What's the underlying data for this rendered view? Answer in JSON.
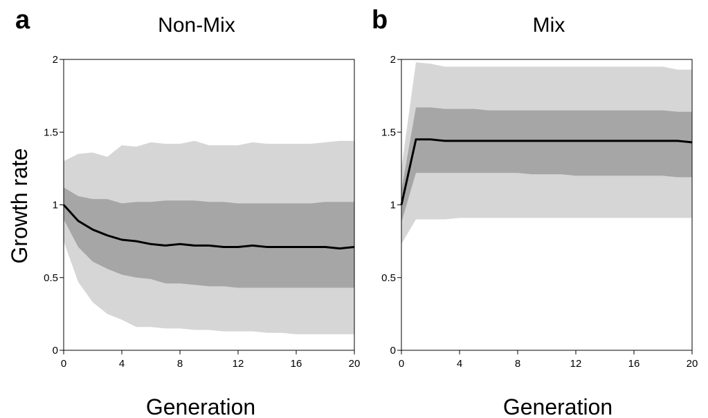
{
  "colors": {
    "outer_band": "#d6d6d6",
    "inner_band": "#a6a6a6",
    "median_line": "#000000"
  },
  "chart_data": [
    {
      "type": "area",
      "panel_letter": "a",
      "title": "Non-Mix",
      "xlabel": "Generation",
      "ylabel": "Growth rate",
      "xlim": [
        0,
        20
      ],
      "ylim": [
        0,
        2
      ],
      "xticks": [
        "0",
        "4",
        "8",
        "12",
        "16",
        "20"
      ],
      "yticks": [
        "0",
        "0.5",
        "1",
        "1.5",
        "2"
      ],
      "grid": false,
      "x": [
        0,
        1,
        2,
        3,
        4,
        5,
        6,
        7,
        8,
        9,
        10,
        11,
        12,
        13,
        14,
        15,
        16,
        17,
        18,
        19,
        20
      ],
      "outer_band": {
        "upper": [
          1.3,
          1.35,
          1.36,
          1.33,
          1.41,
          1.4,
          1.43,
          1.42,
          1.42,
          1.44,
          1.41,
          1.41,
          1.41,
          1.43,
          1.42,
          1.42,
          1.42,
          1.42,
          1.43,
          1.44,
          1.44
        ],
        "lower": [
          0.75,
          0.47,
          0.33,
          0.25,
          0.21,
          0.16,
          0.16,
          0.15,
          0.15,
          0.14,
          0.14,
          0.13,
          0.13,
          0.13,
          0.12,
          0.12,
          0.11,
          0.11,
          0.11,
          0.11,
          0.11
        ]
      },
      "inner_band": {
        "upper": [
          1.12,
          1.06,
          1.04,
          1.04,
          1.01,
          1.02,
          1.02,
          1.03,
          1.03,
          1.03,
          1.02,
          1.02,
          1.01,
          1.01,
          1.01,
          1.01,
          1.01,
          1.01,
          1.02,
          1.02,
          1.02
        ],
        "lower": [
          0.9,
          0.71,
          0.61,
          0.56,
          0.52,
          0.5,
          0.49,
          0.46,
          0.46,
          0.45,
          0.44,
          0.44,
          0.43,
          0.43,
          0.43,
          0.43,
          0.43,
          0.43,
          0.43,
          0.43,
          0.43
        ]
      },
      "median": [
        1.0,
        0.89,
        0.83,
        0.79,
        0.76,
        0.75,
        0.73,
        0.72,
        0.73,
        0.72,
        0.72,
        0.71,
        0.71,
        0.72,
        0.71,
        0.71,
        0.71,
        0.71,
        0.71,
        0.7,
        0.71
      ]
    },
    {
      "type": "area",
      "panel_letter": "b",
      "title": "Mix",
      "xlabel": "Generation",
      "ylabel": "",
      "xlim": [
        0,
        20
      ],
      "ylim": [
        0,
        2
      ],
      "xticks": [
        "0",
        "4",
        "8",
        "12",
        "16",
        "20"
      ],
      "yticks": [
        "0",
        "0.5",
        "1",
        "1.5",
        "2"
      ],
      "grid": false,
      "x": [
        0,
        1,
        2,
        3,
        4,
        5,
        6,
        7,
        8,
        9,
        10,
        11,
        12,
        13,
        14,
        15,
        16,
        17,
        18,
        19,
        20
      ],
      "outer_band": {
        "upper": [
          1.25,
          1.98,
          1.97,
          1.95,
          1.95,
          1.95,
          1.95,
          1.95,
          1.95,
          1.95,
          1.95,
          1.95,
          1.95,
          1.95,
          1.95,
          1.95,
          1.95,
          1.95,
          1.95,
          1.93,
          1.93
        ],
        "lower": [
          0.73,
          0.9,
          0.9,
          0.9,
          0.91,
          0.91,
          0.91,
          0.91,
          0.91,
          0.91,
          0.91,
          0.91,
          0.91,
          0.91,
          0.91,
          0.91,
          0.91,
          0.91,
          0.91,
          0.91,
          0.91
        ]
      },
      "inner_band": {
        "upper": [
          1.1,
          1.67,
          1.67,
          1.66,
          1.66,
          1.66,
          1.65,
          1.65,
          1.65,
          1.65,
          1.65,
          1.65,
          1.65,
          1.65,
          1.65,
          1.65,
          1.65,
          1.65,
          1.65,
          1.64,
          1.64
        ],
        "lower": [
          0.88,
          1.22,
          1.22,
          1.22,
          1.22,
          1.22,
          1.22,
          1.22,
          1.22,
          1.21,
          1.21,
          1.21,
          1.2,
          1.2,
          1.2,
          1.2,
          1.2,
          1.2,
          1.2,
          1.19,
          1.19
        ]
      },
      "median": [
        1.0,
        1.45,
        1.45,
        1.44,
        1.44,
        1.44,
        1.44,
        1.44,
        1.44,
        1.44,
        1.44,
        1.44,
        1.44,
        1.44,
        1.44,
        1.44,
        1.44,
        1.44,
        1.44,
        1.44,
        1.43
      ]
    }
  ]
}
